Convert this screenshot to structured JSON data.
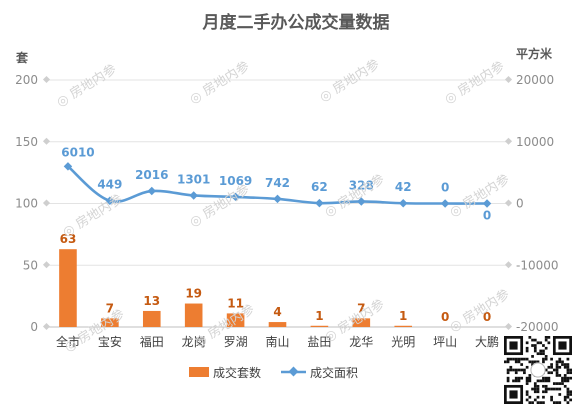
{
  "watermark": "房地内参",
  "chart_data": {
    "type": "bar+line",
    "title": "月度二手办公成交量数据",
    "categories": [
      "全市",
      "宝安",
      "福田",
      "龙岗",
      "罗湖",
      "南山",
      "盐田",
      "龙华",
      "光明",
      "坪山",
      "大鹏"
    ],
    "series": [
      {
        "name": "成交套数",
        "type": "bar",
        "axis": "left",
        "color": "#ED7D31",
        "values": [
          63,
          7,
          13,
          19,
          11,
          4,
          1,
          7,
          1,
          0,
          0
        ]
      },
      {
        "name": "成交面积",
        "type": "line",
        "axis": "right",
        "color": "#5B9BD5",
        "values": [
          6010,
          449,
          2016,
          1301,
          1069,
          742,
          62,
          328,
          42,
          0,
          0
        ]
      }
    ],
    "y_left": {
      "label": "套",
      "range": [
        0,
        200
      ],
      "ticks": [
        0,
        50,
        100,
        150,
        200
      ]
    },
    "y_right": {
      "label": "平方米",
      "range": [
        -20000,
        20000
      ],
      "ticks": [
        -20000,
        -10000,
        0,
        10000,
        20000
      ]
    },
    "legend_position": "bottom",
    "grid": true
  }
}
